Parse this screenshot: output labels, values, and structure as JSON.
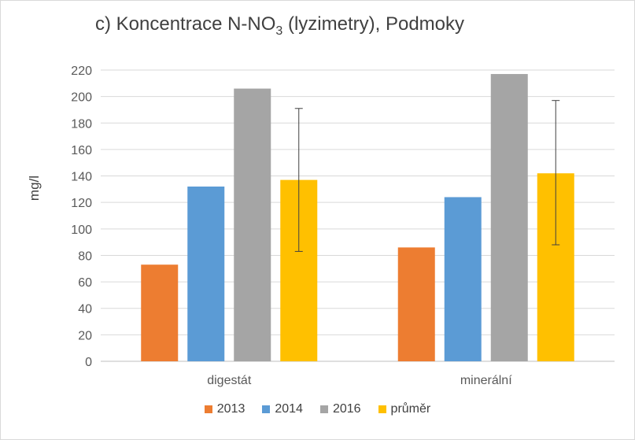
{
  "chart_data": {
    "type": "bar",
    "title": {
      "prefix": "c) Koncentrace  N-NO",
      "subscript": "3",
      "suffix": " (lyzimetry), Podmoky"
    },
    "ylabel": "mg/l",
    "xlabel": "",
    "ylim": [
      0,
      220
    ],
    "yticks": [
      "0",
      "20",
      "40",
      "60",
      "80",
      "100",
      "120",
      "140",
      "160",
      "180",
      "200",
      "220"
    ],
    "grid": true,
    "legend_position": "bottom",
    "categories": [
      "digestát",
      "minerální"
    ],
    "series": [
      {
        "name": "2013",
        "color": "#ED7D31",
        "values": [
          73,
          86
        ]
      },
      {
        "name": "2014",
        "color": "#5B9BD5",
        "values": [
          132,
          124
        ]
      },
      {
        "name": "2016",
        "color": "#A5A5A5",
        "values": [
          206,
          217
        ]
      },
      {
        "name": "průměr",
        "color": "#FFC000",
        "values": [
          137,
          142
        ],
        "error_low": [
          83,
          88
        ],
        "error_high": [
          191,
          197
        ]
      }
    ]
  }
}
